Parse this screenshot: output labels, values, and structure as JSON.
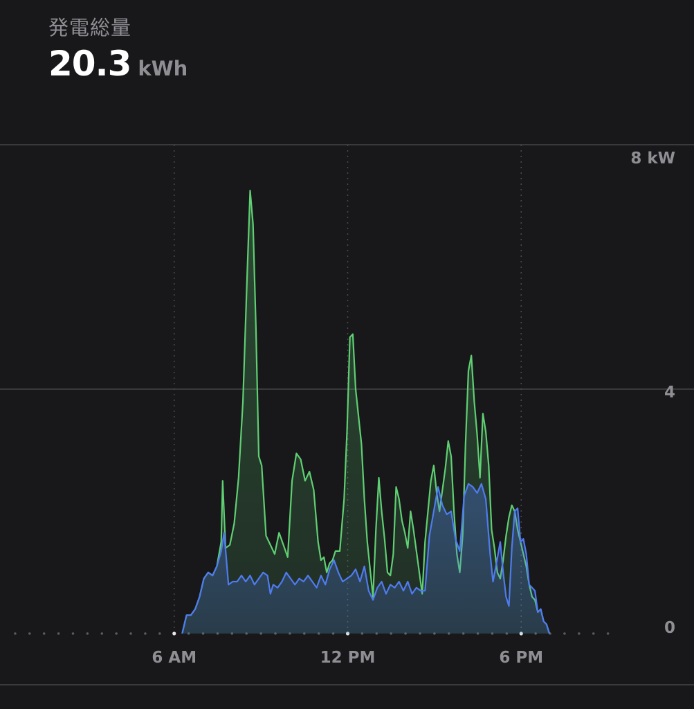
{
  "header": {
    "title": "発電総量",
    "value": "20.3",
    "unit": "kWh"
  },
  "colors": {
    "background": "#18181b",
    "series_green": "#5fcf72",
    "series_blue": "#4f7bf0",
    "gridline": "#3a3a3e",
    "tick_text": "#8e8e93"
  },
  "chart_data": {
    "type": "area",
    "x_unit": "hour of day",
    "xlim": [
      0,
      24
    ],
    "ylim": [
      0,
      8
    ],
    "x_ticks": [
      {
        "value": 6,
        "label": "6 AM"
      },
      {
        "value": 12,
        "label": "12 PM"
      },
      {
        "value": 18,
        "label": "6 PM"
      }
    ],
    "y_ticks": [
      {
        "value": 8,
        "label": "8 kW"
      },
      {
        "value": 4,
        "label": "4"
      },
      {
        "value": 0,
        "label": "0"
      }
    ],
    "grid": true,
    "series": [
      {
        "color": "#5fcf72",
        "points": [
          [
            6.3,
            0
          ],
          [
            6.45,
            0.3
          ],
          [
            6.6,
            0.3
          ],
          [
            6.75,
            0.4
          ],
          [
            6.9,
            0.6
          ],
          [
            7.05,
            0.9
          ],
          [
            7.2,
            1.0
          ],
          [
            7.35,
            0.95
          ],
          [
            7.5,
            1.1
          ],
          [
            7.65,
            1.5
          ],
          [
            7.7,
            2.5
          ],
          [
            7.8,
            1.4
          ],
          [
            7.95,
            1.45
          ],
          [
            8.1,
            1.8
          ],
          [
            8.25,
            2.55
          ],
          [
            8.4,
            3.8
          ],
          [
            8.55,
            5.9
          ],
          [
            8.65,
            7.25
          ],
          [
            8.75,
            6.7
          ],
          [
            8.85,
            5.0
          ],
          [
            8.95,
            2.9
          ],
          [
            9.05,
            2.75
          ],
          [
            9.2,
            1.6
          ],
          [
            9.35,
            1.45
          ],
          [
            9.5,
            1.3
          ],
          [
            9.65,
            1.65
          ],
          [
            9.8,
            1.45
          ],
          [
            9.95,
            1.25
          ],
          [
            10.1,
            2.5
          ],
          [
            10.25,
            2.95
          ],
          [
            10.4,
            2.85
          ],
          [
            10.55,
            2.5
          ],
          [
            10.7,
            2.65
          ],
          [
            10.85,
            2.35
          ],
          [
            11.0,
            1.5
          ],
          [
            11.1,
            1.2
          ],
          [
            11.2,
            1.25
          ],
          [
            11.3,
            1.0
          ],
          [
            11.4,
            1.15
          ],
          [
            11.5,
            1.2
          ],
          [
            11.6,
            1.35
          ],
          [
            11.75,
            1.35
          ],
          [
            11.9,
            2.2
          ],
          [
            12.0,
            3.3
          ],
          [
            12.1,
            4.85
          ],
          [
            12.2,
            4.9
          ],
          [
            12.3,
            4.0
          ],
          [
            12.4,
            3.55
          ],
          [
            12.5,
            3.1
          ],
          [
            12.6,
            2.2
          ],
          [
            12.7,
            1.5
          ],
          [
            12.8,
            1.05
          ],
          [
            12.9,
            0.6
          ],
          [
            13.0,
            1.7
          ],
          [
            13.1,
            2.55
          ],
          [
            13.2,
            2.0
          ],
          [
            13.3,
            1.55
          ],
          [
            13.4,
            1.0
          ],
          [
            13.5,
            0.95
          ],
          [
            13.6,
            1.3
          ],
          [
            13.7,
            2.4
          ],
          [
            13.8,
            2.2
          ],
          [
            13.9,
            1.85
          ],
          [
            14.0,
            1.65
          ],
          [
            14.1,
            1.4
          ],
          [
            14.2,
            2.0
          ],
          [
            14.3,
            1.7
          ],
          [
            14.4,
            1.35
          ],
          [
            14.5,
            1.0
          ],
          [
            14.6,
            0.65
          ],
          [
            14.7,
            1.5
          ],
          [
            14.8,
            2.0
          ],
          [
            14.9,
            2.5
          ],
          [
            15.0,
            2.75
          ],
          [
            15.1,
            2.3
          ],
          [
            15.2,
            2.0
          ],
          [
            15.3,
            2.35
          ],
          [
            15.4,
            2.7
          ],
          [
            15.5,
            3.15
          ],
          [
            15.6,
            2.9
          ],
          [
            15.7,
            2.0
          ],
          [
            15.8,
            1.3
          ],
          [
            15.9,
            1.0
          ],
          [
            16.0,
            1.6
          ],
          [
            16.1,
            3.1
          ],
          [
            16.2,
            4.3
          ],
          [
            16.3,
            4.55
          ],
          [
            16.4,
            3.8
          ],
          [
            16.5,
            3.25
          ],
          [
            16.6,
            2.55
          ],
          [
            16.7,
            3.6
          ],
          [
            16.8,
            3.3
          ],
          [
            16.9,
            2.75
          ],
          [
            17.0,
            1.7
          ],
          [
            17.1,
            1.4
          ],
          [
            17.2,
            1.0
          ],
          [
            17.3,
            0.9
          ],
          [
            17.4,
            1.2
          ],
          [
            17.5,
            1.6
          ],
          [
            17.6,
            1.9
          ],
          [
            17.7,
            2.1
          ],
          [
            17.8,
            2.0
          ],
          [
            17.9,
            1.7
          ],
          [
            18.0,
            1.5
          ],
          [
            18.1,
            1.3
          ],
          [
            18.2,
            1.1
          ],
          [
            18.3,
            0.8
          ],
          [
            18.4,
            0.6
          ],
          [
            18.5,
            0.55
          ],
          [
            18.6,
            0.35
          ],
          [
            18.7,
            0.4
          ],
          [
            18.8,
            0.2
          ],
          [
            18.9,
            0.15
          ],
          [
            19.0,
            0
          ]
        ]
      },
      {
        "color": "#4f7bf0",
        "points": [
          [
            6.3,
            0
          ],
          [
            6.45,
            0.3
          ],
          [
            6.6,
            0.3
          ],
          [
            6.75,
            0.4
          ],
          [
            6.9,
            0.6
          ],
          [
            7.05,
            0.9
          ],
          [
            7.2,
            1.0
          ],
          [
            7.35,
            0.95
          ],
          [
            7.5,
            1.1
          ],
          [
            7.65,
            1.35
          ],
          [
            7.75,
            1.65
          ],
          [
            7.9,
            0.8
          ],
          [
            8.05,
            0.85
          ],
          [
            8.2,
            0.85
          ],
          [
            8.35,
            0.95
          ],
          [
            8.5,
            0.85
          ],
          [
            8.65,
            0.95
          ],
          [
            8.8,
            0.8
          ],
          [
            8.95,
            0.9
          ],
          [
            9.1,
            1.0
          ],
          [
            9.25,
            0.95
          ],
          [
            9.35,
            0.65
          ],
          [
            9.45,
            0.8
          ],
          [
            9.6,
            0.75
          ],
          [
            9.75,
            0.85
          ],
          [
            9.9,
            1.0
          ],
          [
            10.05,
            0.9
          ],
          [
            10.2,
            0.8
          ],
          [
            10.35,
            0.9
          ],
          [
            10.5,
            0.85
          ],
          [
            10.65,
            0.95
          ],
          [
            10.8,
            0.85
          ],
          [
            10.95,
            0.75
          ],
          [
            11.1,
            0.95
          ],
          [
            11.25,
            0.8
          ],
          [
            11.4,
            1.05
          ],
          [
            11.55,
            1.2
          ],
          [
            11.7,
            1.0
          ],
          [
            11.85,
            0.85
          ],
          [
            12.0,
            0.9
          ],
          [
            12.15,
            0.95
          ],
          [
            12.3,
            1.05
          ],
          [
            12.45,
            0.85
          ],
          [
            12.6,
            1.1
          ],
          [
            12.75,
            0.7
          ],
          [
            12.9,
            0.55
          ],
          [
            13.05,
            0.75
          ],
          [
            13.2,
            0.85
          ],
          [
            13.35,
            0.65
          ],
          [
            13.5,
            0.8
          ],
          [
            13.65,
            0.75
          ],
          [
            13.8,
            0.85
          ],
          [
            13.95,
            0.7
          ],
          [
            14.1,
            0.85
          ],
          [
            14.25,
            0.65
          ],
          [
            14.4,
            0.75
          ],
          [
            14.55,
            0.7
          ],
          [
            14.7,
            0.7
          ],
          [
            14.85,
            1.6
          ],
          [
            15.0,
            2.0
          ],
          [
            15.15,
            2.4
          ],
          [
            15.3,
            2.1
          ],
          [
            15.45,
            1.95
          ],
          [
            15.6,
            2.0
          ],
          [
            15.75,
            1.55
          ],
          [
            15.9,
            1.35
          ],
          [
            16.05,
            2.25
          ],
          [
            16.2,
            2.45
          ],
          [
            16.35,
            2.4
          ],
          [
            16.5,
            2.3
          ],
          [
            16.65,
            2.45
          ],
          [
            16.8,
            2.2
          ],
          [
            16.95,
            1.3
          ],
          [
            17.05,
            0.85
          ],
          [
            17.15,
            1.1
          ],
          [
            17.3,
            1.5
          ],
          [
            17.4,
            1.0
          ],
          [
            17.5,
            0.6
          ],
          [
            17.6,
            0.45
          ],
          [
            17.7,
            1.4
          ],
          [
            17.8,
            2.0
          ],
          [
            17.9,
            2.05
          ],
          [
            18.0,
            1.5
          ],
          [
            18.1,
            1.55
          ],
          [
            18.2,
            1.3
          ],
          [
            18.3,
            0.8
          ],
          [
            18.4,
            0.75
          ],
          [
            18.5,
            0.7
          ],
          [
            18.6,
            0.35
          ],
          [
            18.7,
            0.4
          ],
          [
            18.8,
            0.2
          ],
          [
            18.9,
            0.15
          ],
          [
            19.0,
            0
          ]
        ]
      }
    ]
  }
}
